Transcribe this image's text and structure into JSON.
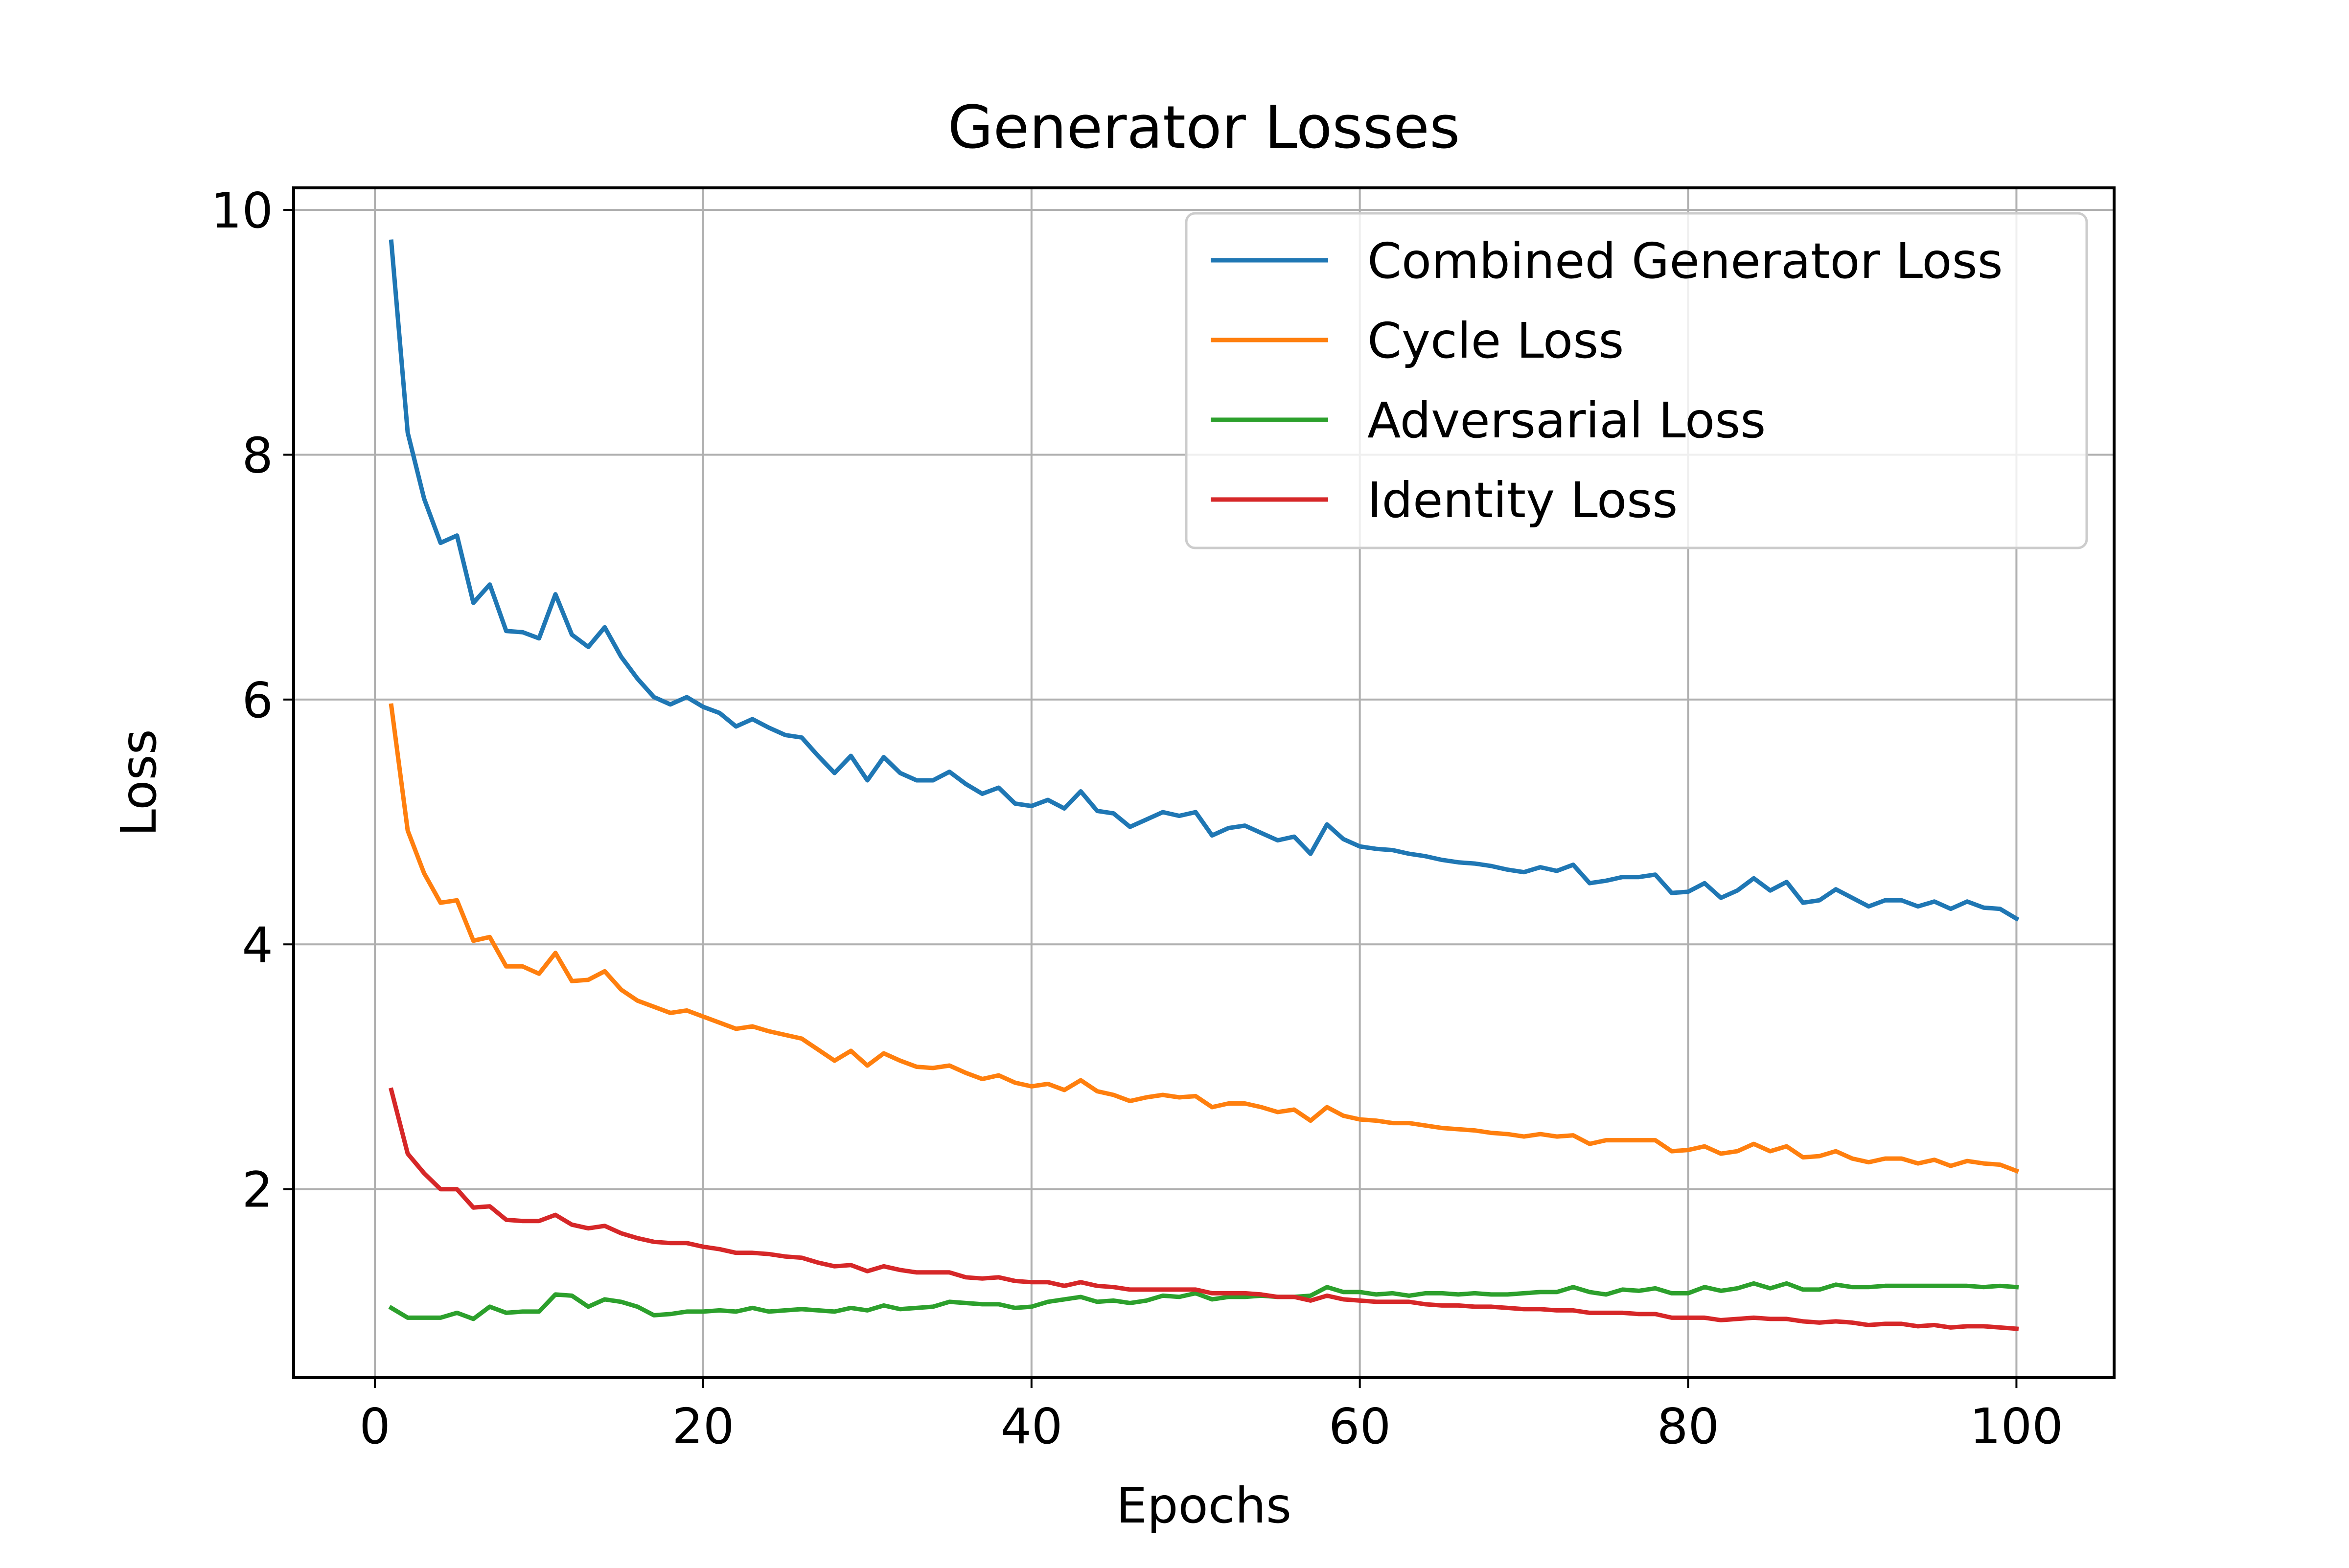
{
  "chart_data": {
    "type": "line",
    "title": "Generator Losses",
    "xlabel": "Epochs",
    "ylabel": "Loss",
    "xlim": [
      -4.95,
      105.95
    ],
    "ylim": [
      0.46,
      10.18
    ],
    "xticks": [
      0,
      20,
      40,
      60,
      80,
      100
    ],
    "yticks": [
      2,
      4,
      6,
      8,
      10
    ],
    "grid": true,
    "legend_position": "upper right",
    "x_start": 1,
    "series": [
      {
        "name": "Combined Generator Loss",
        "color": "#1f77b4",
        "values": [
          9.74,
          8.18,
          7.64,
          7.28,
          7.34,
          6.79,
          6.94,
          6.56,
          6.55,
          6.5,
          6.86,
          6.53,
          6.43,
          6.59,
          6.35,
          6.17,
          6.02,
          5.96,
          6.02,
          5.94,
          5.89,
          5.78,
          5.84,
          5.77,
          5.71,
          5.69,
          5.54,
          5.4,
          5.54,
          5.34,
          5.53,
          5.4,
          5.34,
          5.34,
          5.41,
          5.31,
          5.23,
          5.28,
          5.15,
          5.13,
          5.18,
          5.11,
          5.25,
          5.09,
          5.07,
          4.96,
          5.02,
          5.08,
          5.05,
          5.08,
          4.89,
          4.95,
          4.97,
          4.91,
          4.85,
          4.88,
          4.74,
          4.98,
          4.86,
          4.8,
          4.78,
          4.77,
          4.74,
          4.72,
          4.69,
          4.67,
          4.66,
          4.64,
          4.61,
          4.59,
          4.63,
          4.6,
          4.65,
          4.5,
          4.52,
          4.55,
          4.55,
          4.57,
          4.42,
          4.43,
          4.5,
          4.38,
          4.44,
          4.54,
          4.44,
          4.51,
          4.34,
          4.36,
          4.45,
          4.38,
          4.31,
          4.36,
          4.36,
          4.31,
          4.35,
          4.29,
          4.35,
          4.3,
          4.29,
          4.21
        ]
      },
      {
        "name": "Cycle Loss",
        "color": "#ff7f0e",
        "values": [
          5.95,
          4.93,
          4.58,
          4.34,
          4.36,
          4.03,
          4.06,
          3.82,
          3.82,
          3.76,
          3.93,
          3.7,
          3.71,
          3.78,
          3.63,
          3.54,
          3.49,
          3.44,
          3.46,
          3.41,
          3.36,
          3.31,
          3.33,
          3.29,
          3.26,
          3.23,
          3.14,
          3.05,
          3.13,
          3.01,
          3.11,
          3.05,
          3.0,
          2.99,
          3.01,
          2.95,
          2.9,
          2.93,
          2.87,
          2.84,
          2.86,
          2.81,
          2.89,
          2.8,
          2.77,
          2.72,
          2.75,
          2.77,
          2.75,
          2.76,
          2.67,
          2.7,
          2.7,
          2.67,
          2.63,
          2.65,
          2.56,
          2.67,
          2.6,
          2.57,
          2.56,
          2.54,
          2.54,
          2.52,
          2.5,
          2.49,
          2.48,
          2.46,
          2.45,
          2.43,
          2.45,
          2.43,
          2.44,
          2.37,
          2.4,
          2.4,
          2.4,
          2.4,
          2.31,
          2.32,
          2.35,
          2.29,
          2.31,
          2.37,
          2.31,
          2.35,
          2.26,
          2.27,
          2.31,
          2.25,
          2.22,
          2.25,
          2.25,
          2.21,
          2.24,
          2.19,
          2.23,
          2.21,
          2.2,
          2.15
        ]
      },
      {
        "name": "Adversarial Loss",
        "color": "#2ca02c",
        "values": [
          1.03,
          0.95,
          0.95,
          0.95,
          0.99,
          0.94,
          1.04,
          0.99,
          1.0,
          1.0,
          1.14,
          1.13,
          1.04,
          1.1,
          1.08,
          1.04,
          0.97,
          0.98,
          1.0,
          1.0,
          1.01,
          1.0,
          1.03,
          1.0,
          1.01,
          1.02,
          1.01,
          1.0,
          1.03,
          1.01,
          1.05,
          1.02,
          1.03,
          1.04,
          1.08,
          1.07,
          1.06,
          1.06,
          1.03,
          1.04,
          1.08,
          1.1,
          1.12,
          1.08,
          1.09,
          1.07,
          1.09,
          1.13,
          1.12,
          1.15,
          1.1,
          1.12,
          1.12,
          1.13,
          1.12,
          1.12,
          1.13,
          1.2,
          1.16,
          1.16,
          1.14,
          1.15,
          1.13,
          1.15,
          1.15,
          1.14,
          1.15,
          1.14,
          1.14,
          1.15,
          1.16,
          1.16,
          1.2,
          1.16,
          1.14,
          1.18,
          1.17,
          1.19,
          1.15,
          1.15,
          1.2,
          1.17,
          1.19,
          1.23,
          1.19,
          1.23,
          1.18,
          1.18,
          1.22,
          1.2,
          1.2,
          1.21,
          1.21,
          1.21,
          1.21,
          1.21,
          1.21,
          1.2,
          1.21,
          1.2
        ]
      },
      {
        "name": "Identity Loss",
        "color": "#d62728",
        "values": [
          2.81,
          2.29,
          2.13,
          2.0,
          2.0,
          1.85,
          1.86,
          1.75,
          1.74,
          1.74,
          1.79,
          1.71,
          1.68,
          1.7,
          1.64,
          1.6,
          1.57,
          1.56,
          1.56,
          1.53,
          1.51,
          1.48,
          1.48,
          1.47,
          1.45,
          1.44,
          1.4,
          1.37,
          1.38,
          1.33,
          1.37,
          1.34,
          1.32,
          1.32,
          1.32,
          1.28,
          1.27,
          1.28,
          1.25,
          1.24,
          1.24,
          1.21,
          1.24,
          1.21,
          1.2,
          1.18,
          1.18,
          1.18,
          1.18,
          1.18,
          1.15,
          1.15,
          1.15,
          1.14,
          1.12,
          1.12,
          1.09,
          1.13,
          1.1,
          1.09,
          1.08,
          1.08,
          1.08,
          1.06,
          1.05,
          1.05,
          1.04,
          1.04,
          1.03,
          1.02,
          1.02,
          1.01,
          1.01,
          0.99,
          0.99,
          0.99,
          0.98,
          0.98,
          0.95,
          0.95,
          0.95,
          0.93,
          0.94,
          0.95,
          0.94,
          0.94,
          0.92,
          0.91,
          0.92,
          0.91,
          0.89,
          0.9,
          0.9,
          0.88,
          0.89,
          0.87,
          0.88,
          0.88,
          0.87,
          0.86
        ]
      }
    ]
  }
}
